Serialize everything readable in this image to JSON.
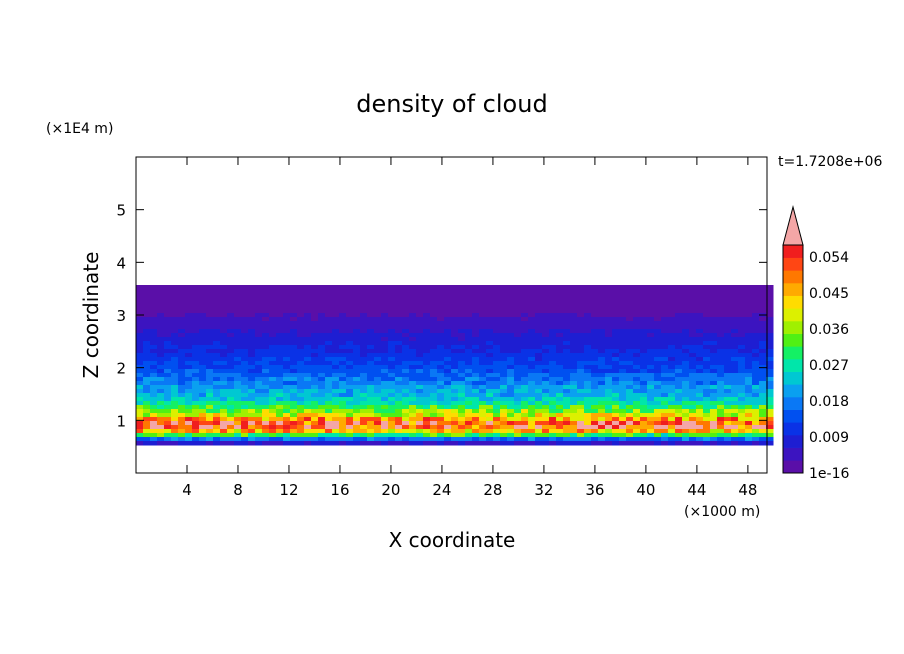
{
  "chart_data": {
    "type": "heatmap",
    "title": "density of cloud",
    "xlabel": "X coordinate",
    "ylabel": "Z coordinate",
    "x_unit": "(×1000 m)",
    "y_unit": "(×1E4 m)",
    "time_label": "t=1.7208e+06",
    "xlim": [
      0,
      49.5
    ],
    "ylim": [
      0,
      6
    ],
    "x_ticks": [
      "4",
      "8",
      "12",
      "16",
      "20",
      "24",
      "28",
      "32",
      "36",
      "40",
      "44",
      "48"
    ],
    "x_tick_values": [
      4,
      8,
      12,
      16,
      20,
      24,
      28,
      32,
      36,
      40,
      44,
      48
    ],
    "y_ticks": [
      "1",
      "2",
      "3",
      "4",
      "5"
    ],
    "y_tick_values": [
      1,
      2,
      3,
      4,
      5
    ],
    "colorbar": {
      "labels": [
        "1e-16",
        "0.009",
        "0.018",
        "0.027",
        "0.036",
        "0.045",
        "0.054"
      ],
      "label_values": [
        0,
        0.009,
        0.018,
        0.027,
        0.036,
        0.045,
        0.054
      ],
      "colors": [
        "#5a0fa8",
        "#3c14c0",
        "#1e1ed2",
        "#0a32e6",
        "#0050f0",
        "#0a78f5",
        "#0aa0f0",
        "#00c8d2",
        "#00e6aa",
        "#14f064",
        "#50f014",
        "#a0f000",
        "#dcf000",
        "#ffdc00",
        "#ffaa00",
        "#ff7800",
        "#ff4614",
        "#f01e1e",
        "#f4a6a6"
      ]
    },
    "profile": {
      "z": [
        0.55,
        0.62,
        0.72,
        0.8,
        0.9,
        1.0,
        1.1,
        1.2,
        1.3,
        1.4,
        1.6,
        1.8,
        2.0,
        2.3,
        2.6,
        2.9,
        3.2,
        3.58
      ],
      "density": [
        0.004,
        0.012,
        0.03,
        0.045,
        0.056,
        0.05,
        0.04,
        0.034,
        0.028,
        0.024,
        0.02,
        0.017,
        0.013,
        0.01,
        0.007,
        0.004,
        0.001,
        0.0
      ]
    }
  }
}
